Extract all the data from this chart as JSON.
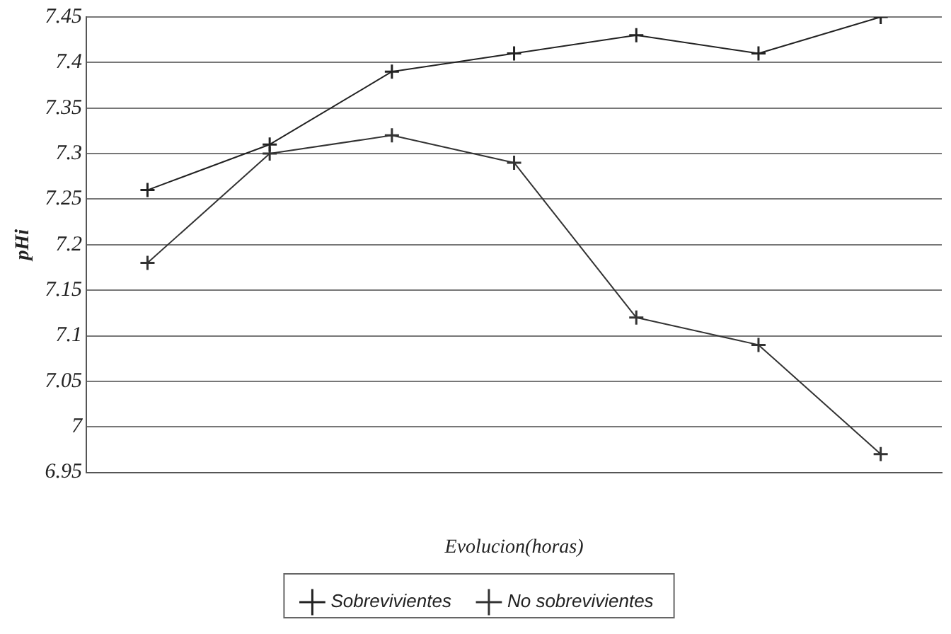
{
  "chart_data": {
    "type": "line",
    "xlabel": "Evolucion(horas)",
    "ylabel": "pHi",
    "categories": [
      null,
      null,
      null,
      null,
      null,
      null,
      null
    ],
    "series": [
      {
        "name": "Sobrevivientes",
        "color": "#222222",
        "marker": "cross",
        "values": [
          7.26,
          7.31,
          7.39,
          7.41,
          7.43,
          7.41,
          7.45
        ]
      },
      {
        "name": "No sobrevivientes",
        "color": "#333333",
        "marker": "cross",
        "values": [
          7.18,
          7.3,
          7.32,
          7.29,
          7.12,
          7.09,
          6.97
        ]
      }
    ],
    "ylim": [
      6.95,
      7.45
    ],
    "yticks": [
      6.95,
      7,
      7.05,
      7.1,
      7.15,
      7.2,
      7.25,
      7.3,
      7.35,
      7.4,
      7.45
    ],
    "grid": "y",
    "legend": "bottom",
    "line_style": "solid"
  }
}
